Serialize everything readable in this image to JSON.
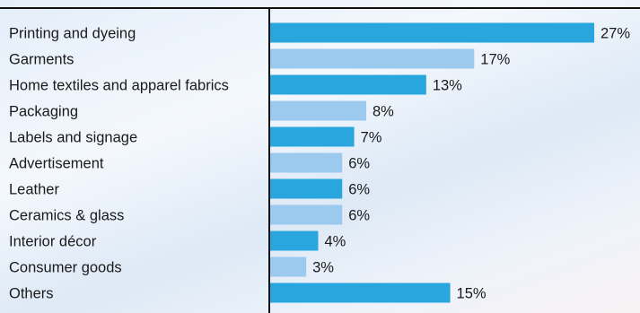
{
  "chart_data": {
    "type": "bar",
    "orientation": "horizontal",
    "categories": [
      "Printing and dyeing",
      "Garments",
      "Home textiles and apparel fabrics",
      "Packaging",
      "Labels and signage",
      "Advertisement",
      "Leather",
      "Ceramics & glass",
      "Interior décor",
      "Consumer goods",
      "Others"
    ],
    "values": [
      27,
      17,
      13,
      8,
      7,
      6,
      6,
      6,
      4,
      3,
      15
    ],
    "value_labels": [
      "27%",
      "17%",
      "13%",
      "8%",
      "7%",
      "6%",
      "6%",
      "6%",
      "4%",
      "3%",
      "15%"
    ],
    "unit": "%",
    "title": "",
    "xlabel": "",
    "ylabel": "",
    "xlim": [
      0,
      27
    ],
    "grid": false,
    "legend": "none",
    "colors": {
      "dark": "#2aa6df",
      "light": "#9ccaee",
      "axis": "#111111",
      "text": "#1a1a1a"
    }
  }
}
